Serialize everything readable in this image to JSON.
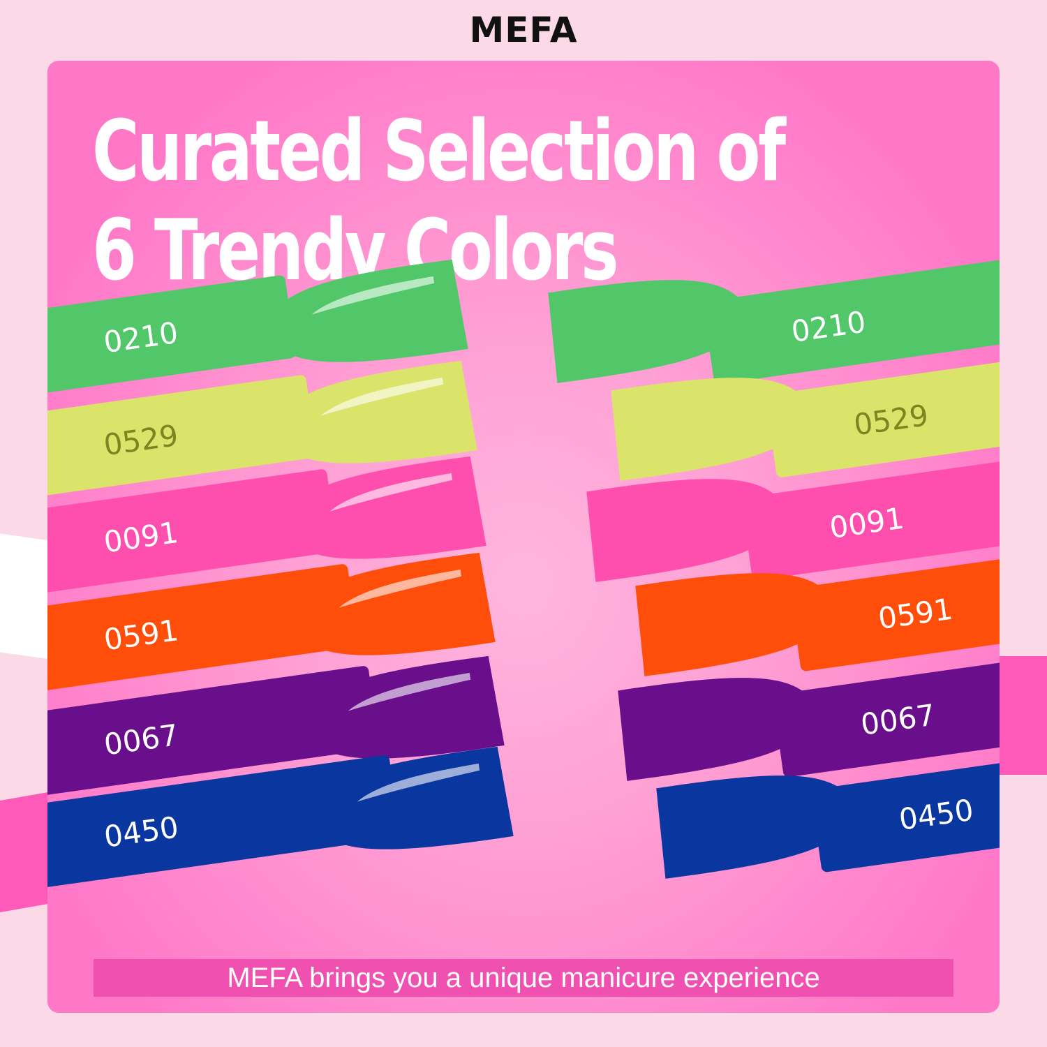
{
  "brand": "MEFA",
  "title": {
    "line1": "Curated Selection of",
    "line2": "6 Trendy Colors"
  },
  "left_swatches": [
    {
      "code": "0210",
      "color": "#52c76a",
      "text": "#ffffff"
    },
    {
      "code": "0529",
      "color": "#dbe46a",
      "text": "#7d8420"
    },
    {
      "code": "0091",
      "color": "#ff4fae",
      "text": "#ffffff"
    },
    {
      "code": "0591",
      "color": "#ff4d0a",
      "text": "#ffffff"
    },
    {
      "code": "0067",
      "color": "#6a0f8c",
      "text": "#ffffff"
    },
    {
      "code": "0450",
      "color": "#0a36a0",
      "text": "#ffffff"
    }
  ],
  "right_swatches": [
    {
      "code": "0210",
      "color": "#52c76a",
      "text": "#ffffff"
    },
    {
      "code": "0529",
      "color": "#dbe46a",
      "text": "#7d8420"
    },
    {
      "code": "0091",
      "color": "#ff4fae",
      "text": "#ffffff"
    },
    {
      "code": "0591",
      "color": "#ff4d0a",
      "text": "#ffffff"
    },
    {
      "code": "0067",
      "color": "#6a0f8c",
      "text": "#ffffff"
    },
    {
      "code": "0450",
      "color": "#0a36a0",
      "text": "#ffffff"
    }
  ],
  "banner": "MEFA brings you a unique manicure experience"
}
